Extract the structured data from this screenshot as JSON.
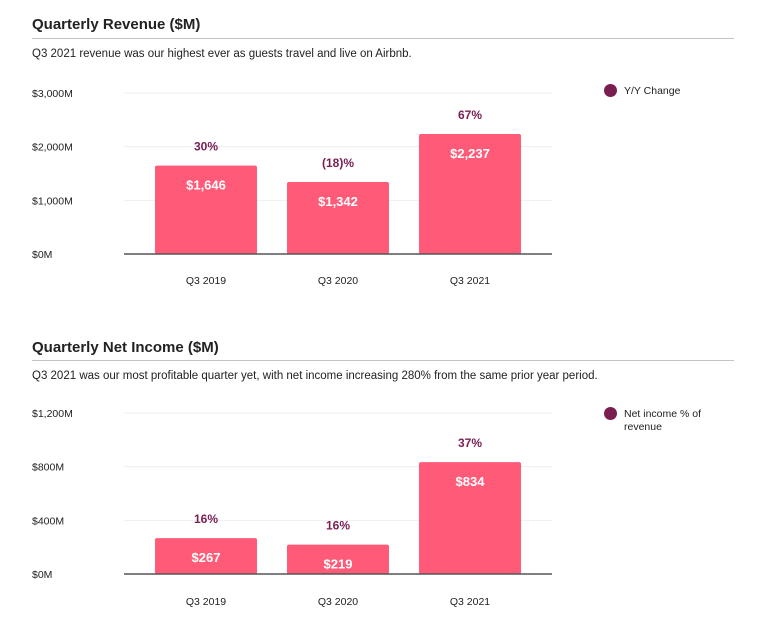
{
  "colors": {
    "bar": "#ff5a78",
    "accent": "#7a1e52",
    "text": "#222222",
    "axis": "#555555",
    "grid": "#eeeeee"
  },
  "sections": [
    {
      "title": "Quarterly Revenue ($M)",
      "subtitle": "Q3 2021 revenue was our highest ever as guests travel and live on Airbnb."
    },
    {
      "title": "Quarterly Net Income ($M)",
      "subtitle": "Q3 2021 was our most profitable quarter yet, with net income increasing 280% from the same prior year period."
    }
  ],
  "chart_data": [
    {
      "type": "bar",
      "title": "Quarterly Revenue ($M)",
      "categories": [
        "Q3 2019",
        "Q3 2020",
        "Q3 2021"
      ],
      "values": [
        1646,
        1342,
        2237
      ],
      "value_labels": [
        "$1,646",
        "$1,342",
        "$2,237"
      ],
      "annotations": [
        "30%",
        "(18)%",
        "67%"
      ],
      "yticks": [
        0,
        1000,
        2000,
        3000
      ],
      "ytick_labels": [
        "$0M",
        "$1,000M",
        "$2,000M",
        "$3,000M"
      ],
      "ylim": [
        0,
        3000
      ],
      "legend": "Y/Y Change",
      "legend_position": "top-right"
    },
    {
      "type": "bar",
      "title": "Quarterly Net Income ($M)",
      "categories": [
        "Q3 2019",
        "Q3 2020",
        "Q3 2021"
      ],
      "values": [
        267,
        219,
        834
      ],
      "value_labels": [
        "$267",
        "$219",
        "$834"
      ],
      "annotations": [
        "16%",
        "16%",
        "37%"
      ],
      "yticks": [
        0,
        400,
        800,
        1200
      ],
      "ytick_labels": [
        "$0M",
        "$400M",
        "$800M",
        "$1,200M"
      ],
      "ylim": [
        0,
        1200
      ],
      "legend": "Net income % of revenue",
      "legend_position": "top-right"
    }
  ]
}
